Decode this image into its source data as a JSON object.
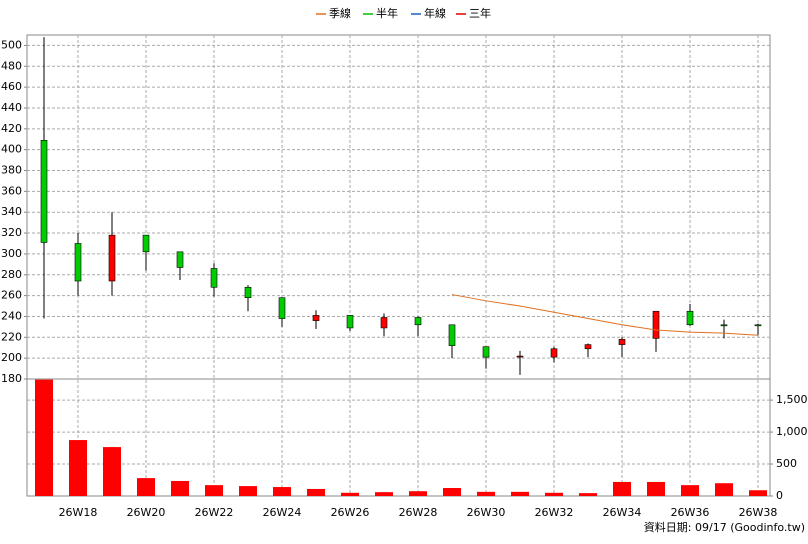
{
  "chart_data": {
    "type": "candlestick",
    "legend": [
      {
        "name": "季線",
        "color": "#e07020"
      },
      {
        "name": "半年",
        "color": "#00c000"
      },
      {
        "name": "年線",
        "color": "#2060c0"
      },
      {
        "name": "三年",
        "color": "#e00000"
      }
    ],
    "categories": [
      null,
      "26W18",
      null,
      "26W20",
      null,
      "26W22",
      null,
      "26W24",
      null,
      "26W26",
      null,
      "26W28",
      null,
      "26W30",
      null,
      "26W32",
      null,
      "26W34",
      null,
      "26W36",
      null,
      "26W38"
    ],
    "open": [
      409,
      310,
      274,
      318,
      302,
      286,
      268,
      258,
      236,
      241,
      229,
      239,
      232,
      211,
      202,
      201,
      209,
      213,
      219,
      245,
      232,
      232
    ],
    "high": [
      508,
      320,
      340,
      318,
      302,
      291,
      270,
      258,
      246,
      241,
      243,
      240,
      232,
      211,
      207,
      211,
      214,
      220,
      245,
      252,
      237,
      233
    ],
    "low": [
      238,
      260,
      260,
      284,
      275,
      259,
      245,
      230,
      228,
      226,
      221,
      221,
      200,
      190,
      184,
      196,
      201,
      201,
      206,
      231,
      219,
      222
    ],
    "close": [
      311,
      274,
      318,
      302,
      287,
      268,
      258,
      238,
      241,
      229,
      239,
      232,
      212,
      201,
      202,
      209,
      213,
      218,
      245,
      232,
      231,
      231
    ],
    "up_color": "#ff0000",
    "down_color": "#00cc00",
    "ma": {
      "name": "季線",
      "color": "#e07020",
      "values": [
        null,
        null,
        null,
        null,
        null,
        null,
        null,
        null,
        null,
        null,
        null,
        null,
        261,
        255,
        250,
        244,
        238,
        232,
        227,
        225,
        224,
        222
      ]
    },
    "volume": {
      "color": "#ff0000",
      "values": [
        1820,
        875,
        765,
        280,
        235,
        170,
        155,
        140,
        110,
        50,
        60,
        75,
        125,
        65,
        65,
        50,
        45,
        220,
        220,
        170,
        200,
        90
      ]
    },
    "ylim": [
      180,
      510
    ],
    "yticks": [
      180,
      200,
      220,
      240,
      260,
      280,
      300,
      320,
      340,
      360,
      380,
      400,
      420,
      440,
      460,
      480,
      500
    ],
    "y2lim": [
      0,
      1830
    ],
    "y2ticks": [
      0,
      500,
      {
        "value": 1000,
        "label": "1,000"
      },
      {
        "value": 1500,
        "label": "1,500"
      }
    ],
    "grid": true,
    "footer": "資料日期: 09/17  (Goodinfo.tw)"
  }
}
